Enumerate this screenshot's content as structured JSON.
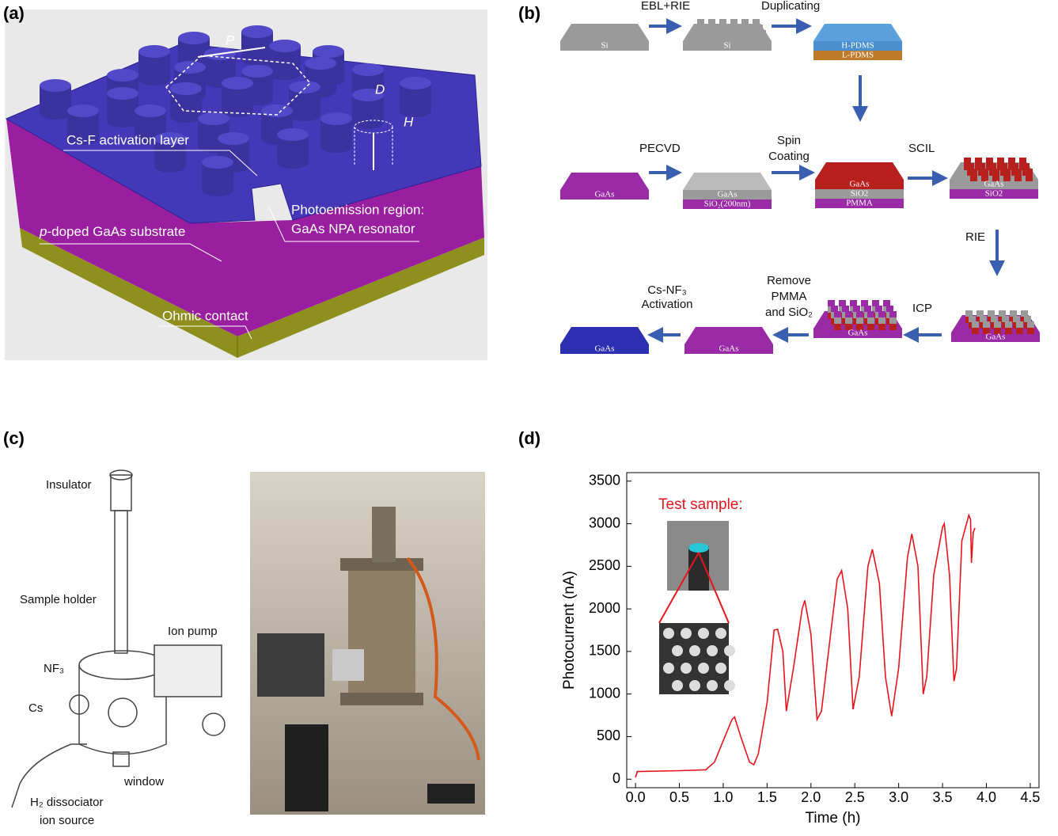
{
  "panel_a": {
    "label": "(a)",
    "P": "P",
    "D": "D",
    "H": "H",
    "activation": "Cs-F activation layer",
    "region": [
      "Photoemission region:",
      "GaAs NPA resonator"
    ],
    "substrate": [
      "p",
      "-doped GaAs substrate"
    ],
    "contact": "Ohmic contact"
  },
  "panel_b": {
    "label": "(b)",
    "steps": {
      "ebl": "EBL+RIE",
      "dup": "Duplicating",
      "pecvd": "PECVD",
      "spin": [
        "Spin",
        "Coating"
      ],
      "scil": "SCIL",
      "rie": "RIE",
      "icp": "ICP",
      "remove": [
        "Remove",
        "PMMA",
        "and SiO₂"
      ],
      "activation": [
        "Cs-NF₃",
        "Activation"
      ]
    },
    "blocks": [
      [
        "Si"
      ],
      [
        "Si"
      ],
      [
        "L-PDMS",
        "H-PDMS"
      ],
      [
        "GaAs"
      ],
      [
        "SiO₂(200nm)",
        "GaAs"
      ],
      [
        "PMMA",
        "SiO2",
        "GaAs"
      ],
      [
        "SiO2",
        "GaAs"
      ],
      [
        "GaAs"
      ],
      [
        "GaAs"
      ],
      [
        "GaAs"
      ],
      [
        "GaAs"
      ]
    ]
  },
  "panel_c": {
    "label": "(c)",
    "insulator": "Insulator",
    "holder": "Sample holder",
    "pump": "Ion pump",
    "nf3": "NF₃",
    "cs": "Cs",
    "window": "window",
    "source": [
      "H₂ dissociator",
      "ion source"
    ]
  },
  "chart_data": {
    "type": "line",
    "label": "(d)",
    "annotation": "Test sample:",
    "xlabel": "Time (h)",
    "ylabel": "Photocurrent (nA)",
    "color": "#e8141c",
    "x": [
      0,
      0.02,
      0.5,
      0.8,
      0.9,
      1.0,
      1.1,
      1.13,
      1.2,
      1.3,
      1.35,
      1.4,
      1.5,
      1.58,
      1.62,
      1.68,
      1.72,
      1.8,
      1.9,
      1.93,
      2.0,
      2.07,
      2.12,
      2.2,
      2.3,
      2.35,
      2.42,
      2.48,
      2.55,
      2.65,
      2.7,
      2.78,
      2.85,
      2.92,
      3.0,
      3.1,
      3.15,
      3.22,
      3.28,
      3.32,
      3.4,
      3.5,
      3.52,
      3.58,
      3.63,
      3.66,
      3.72,
      3.8,
      3.82,
      3.83,
      3.85,
      3.87
    ],
    "values": [
      20,
      90,
      100,
      110,
      200,
      450,
      700,
      730,
      500,
      200,
      170,
      300,
      900,
      1750,
      1760,
      1500,
      800,
      1300,
      2000,
      2100,
      1700,
      700,
      800,
      1500,
      2350,
      2450,
      2000,
      820,
      1200,
      2500,
      2700,
      2300,
      1200,
      740,
      1300,
      2600,
      2880,
      2500,
      1000,
      1200,
      2400,
      2960,
      3000,
      2400,
      1150,
      1300,
      2800,
      3100,
      3050,
      2540,
      2900,
      2950
    ],
    "xlim": [
      -0.1,
      4.6
    ],
    "ylim": [
      -100,
      3600
    ],
    "xticks": [
      {
        "value": 0,
        "label": "0.0"
      },
      0.5,
      {
        "value": 1,
        "label": "1.0"
      },
      1.5,
      {
        "value": 2,
        "label": "2.0"
      },
      2.5,
      {
        "value": 3,
        "label": "3.0"
      },
      3.5,
      {
        "value": 4,
        "label": "4.0"
      },
      4.5
    ],
    "yticks": [
      0,
      500,
      1000,
      1500,
      2000,
      2500,
      3000,
      3500
    ]
  }
}
